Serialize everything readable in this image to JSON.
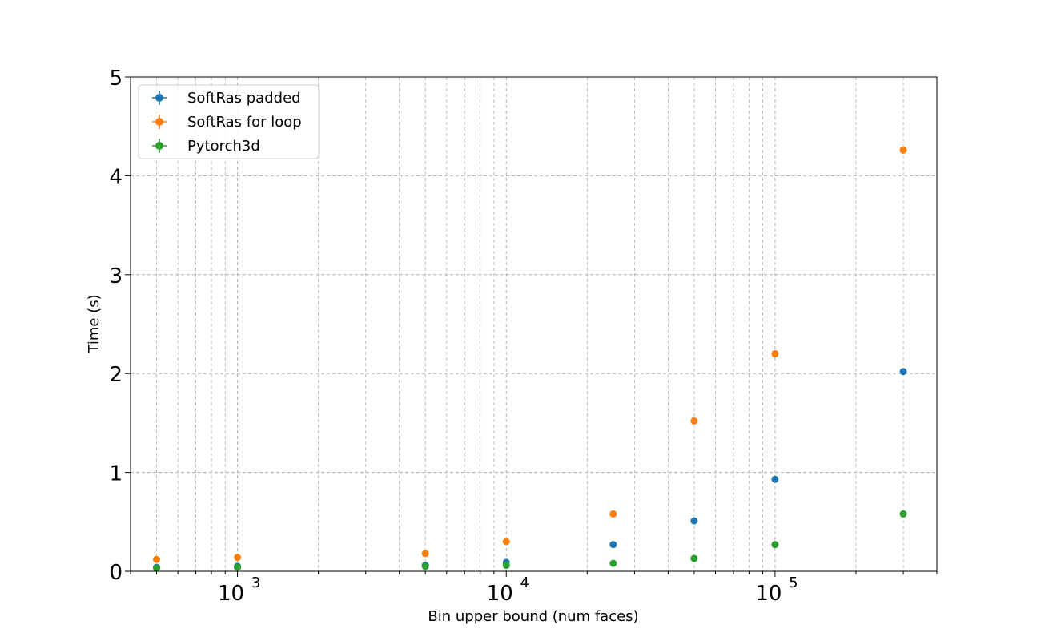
{
  "chart_data": {
    "type": "scatter",
    "title": "",
    "xlabel": "Bin upper bound (num faces)",
    "ylabel": "Time (s)",
    "xscale": "log",
    "xlim": [
      400,
      400000
    ],
    "ylim": [
      0,
      5
    ],
    "grid": true,
    "legend_position": "top-left",
    "x_ticks": [
      {
        "value": 1000,
        "base": "10",
        "exp": "3"
      },
      {
        "value": 10000,
        "base": "10",
        "exp": "4"
      },
      {
        "value": 100000,
        "base": "10",
        "exp": "5"
      }
    ],
    "y_ticks": [
      {
        "value": 0,
        "label": "0"
      },
      {
        "value": 1,
        "label": "1"
      },
      {
        "value": 2,
        "label": "2"
      },
      {
        "value": 3,
        "label": "3"
      },
      {
        "value": 4,
        "label": "4"
      },
      {
        "value": 5,
        "label": "5"
      }
    ],
    "series": [
      {
        "name": "SoftRas padded",
        "color": "#1f77b4",
        "x": [
          500,
          1000,
          5000,
          10000,
          25000,
          50000,
          100000,
          300000
        ],
        "y": [
          0.04,
          0.05,
          0.06,
          0.09,
          0.27,
          0.51,
          0.93,
          2.02
        ]
      },
      {
        "name": "SoftRas for loop",
        "color": "#ff7f0e",
        "x": [
          500,
          1000,
          5000,
          10000,
          25000,
          50000,
          100000,
          300000
        ],
        "y": [
          0.12,
          0.14,
          0.18,
          0.3,
          0.58,
          1.52,
          2.2,
          4.26
        ]
      },
      {
        "name": "Pytorch3d",
        "color": "#2ca02c",
        "x": [
          500,
          1000,
          5000,
          10000,
          25000,
          50000,
          100000,
          300000
        ],
        "y": [
          0.03,
          0.04,
          0.05,
          0.06,
          0.08,
          0.13,
          0.27,
          0.58
        ]
      }
    ]
  }
}
